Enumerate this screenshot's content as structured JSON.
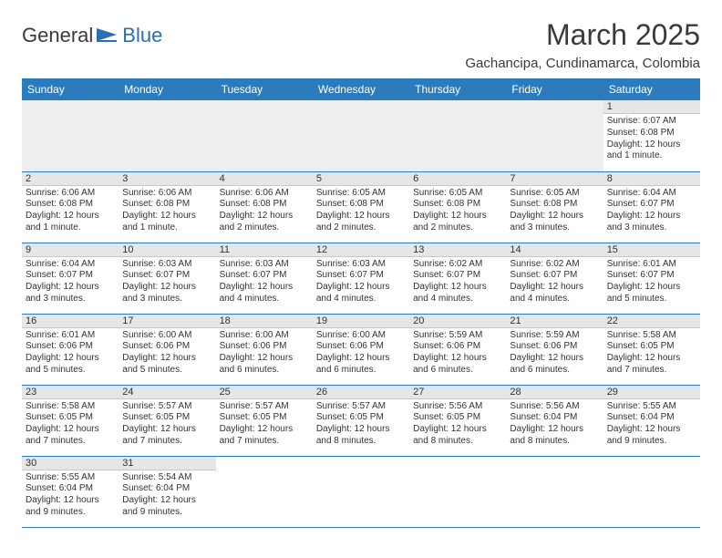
{
  "logo": {
    "part1": "General",
    "part2": "Blue"
  },
  "month_title": "March 2025",
  "subtitle": "Gachancipa, Cundinamarca, Colombia",
  "header_bg": "#2b7bbd",
  "header_text": "#ffffff",
  "daynum_bg": "#e6e6e6",
  "rule_color": "#2b7bbd",
  "weekdays": [
    "Sunday",
    "Monday",
    "Tuesday",
    "Wednesday",
    "Thursday",
    "Friday",
    "Saturday"
  ],
  "weeks": [
    [
      null,
      null,
      null,
      null,
      null,
      null,
      {
        "n": "1",
        "sr": "Sunrise: 6:07 AM",
        "ss": "Sunset: 6:08 PM",
        "d1": "Daylight: 12 hours",
        "d2": "and 1 minute."
      }
    ],
    [
      {
        "n": "2",
        "sr": "Sunrise: 6:06 AM",
        "ss": "Sunset: 6:08 PM",
        "d1": "Daylight: 12 hours",
        "d2": "and 1 minute."
      },
      {
        "n": "3",
        "sr": "Sunrise: 6:06 AM",
        "ss": "Sunset: 6:08 PM",
        "d1": "Daylight: 12 hours",
        "d2": "and 1 minute."
      },
      {
        "n": "4",
        "sr": "Sunrise: 6:06 AM",
        "ss": "Sunset: 6:08 PM",
        "d1": "Daylight: 12 hours",
        "d2": "and 2 minutes."
      },
      {
        "n": "5",
        "sr": "Sunrise: 6:05 AM",
        "ss": "Sunset: 6:08 PM",
        "d1": "Daylight: 12 hours",
        "d2": "and 2 minutes."
      },
      {
        "n": "6",
        "sr": "Sunrise: 6:05 AM",
        "ss": "Sunset: 6:08 PM",
        "d1": "Daylight: 12 hours",
        "d2": "and 2 minutes."
      },
      {
        "n": "7",
        "sr": "Sunrise: 6:05 AM",
        "ss": "Sunset: 6:08 PM",
        "d1": "Daylight: 12 hours",
        "d2": "and 3 minutes."
      },
      {
        "n": "8",
        "sr": "Sunrise: 6:04 AM",
        "ss": "Sunset: 6:07 PM",
        "d1": "Daylight: 12 hours",
        "d2": "and 3 minutes."
      }
    ],
    [
      {
        "n": "9",
        "sr": "Sunrise: 6:04 AM",
        "ss": "Sunset: 6:07 PM",
        "d1": "Daylight: 12 hours",
        "d2": "and 3 minutes."
      },
      {
        "n": "10",
        "sr": "Sunrise: 6:03 AM",
        "ss": "Sunset: 6:07 PM",
        "d1": "Daylight: 12 hours",
        "d2": "and 3 minutes."
      },
      {
        "n": "11",
        "sr": "Sunrise: 6:03 AM",
        "ss": "Sunset: 6:07 PM",
        "d1": "Daylight: 12 hours",
        "d2": "and 4 minutes."
      },
      {
        "n": "12",
        "sr": "Sunrise: 6:03 AM",
        "ss": "Sunset: 6:07 PM",
        "d1": "Daylight: 12 hours",
        "d2": "and 4 minutes."
      },
      {
        "n": "13",
        "sr": "Sunrise: 6:02 AM",
        "ss": "Sunset: 6:07 PM",
        "d1": "Daylight: 12 hours",
        "d2": "and 4 minutes."
      },
      {
        "n": "14",
        "sr": "Sunrise: 6:02 AM",
        "ss": "Sunset: 6:07 PM",
        "d1": "Daylight: 12 hours",
        "d2": "and 4 minutes."
      },
      {
        "n": "15",
        "sr": "Sunrise: 6:01 AM",
        "ss": "Sunset: 6:07 PM",
        "d1": "Daylight: 12 hours",
        "d2": "and 5 minutes."
      }
    ],
    [
      {
        "n": "16",
        "sr": "Sunrise: 6:01 AM",
        "ss": "Sunset: 6:06 PM",
        "d1": "Daylight: 12 hours",
        "d2": "and 5 minutes."
      },
      {
        "n": "17",
        "sr": "Sunrise: 6:00 AM",
        "ss": "Sunset: 6:06 PM",
        "d1": "Daylight: 12 hours",
        "d2": "and 5 minutes."
      },
      {
        "n": "18",
        "sr": "Sunrise: 6:00 AM",
        "ss": "Sunset: 6:06 PM",
        "d1": "Daylight: 12 hours",
        "d2": "and 6 minutes."
      },
      {
        "n": "19",
        "sr": "Sunrise: 6:00 AM",
        "ss": "Sunset: 6:06 PM",
        "d1": "Daylight: 12 hours",
        "d2": "and 6 minutes."
      },
      {
        "n": "20",
        "sr": "Sunrise: 5:59 AM",
        "ss": "Sunset: 6:06 PM",
        "d1": "Daylight: 12 hours",
        "d2": "and 6 minutes."
      },
      {
        "n": "21",
        "sr": "Sunrise: 5:59 AM",
        "ss": "Sunset: 6:06 PM",
        "d1": "Daylight: 12 hours",
        "d2": "and 6 minutes."
      },
      {
        "n": "22",
        "sr": "Sunrise: 5:58 AM",
        "ss": "Sunset: 6:05 PM",
        "d1": "Daylight: 12 hours",
        "d2": "and 7 minutes."
      }
    ],
    [
      {
        "n": "23",
        "sr": "Sunrise: 5:58 AM",
        "ss": "Sunset: 6:05 PM",
        "d1": "Daylight: 12 hours",
        "d2": "and 7 minutes."
      },
      {
        "n": "24",
        "sr": "Sunrise: 5:57 AM",
        "ss": "Sunset: 6:05 PM",
        "d1": "Daylight: 12 hours",
        "d2": "and 7 minutes."
      },
      {
        "n": "25",
        "sr": "Sunrise: 5:57 AM",
        "ss": "Sunset: 6:05 PM",
        "d1": "Daylight: 12 hours",
        "d2": "and 7 minutes."
      },
      {
        "n": "26",
        "sr": "Sunrise: 5:57 AM",
        "ss": "Sunset: 6:05 PM",
        "d1": "Daylight: 12 hours",
        "d2": "and 8 minutes."
      },
      {
        "n": "27",
        "sr": "Sunrise: 5:56 AM",
        "ss": "Sunset: 6:05 PM",
        "d1": "Daylight: 12 hours",
        "d2": "and 8 minutes."
      },
      {
        "n": "28",
        "sr": "Sunrise: 5:56 AM",
        "ss": "Sunset: 6:04 PM",
        "d1": "Daylight: 12 hours",
        "d2": "and 8 minutes."
      },
      {
        "n": "29",
        "sr": "Sunrise: 5:55 AM",
        "ss": "Sunset: 6:04 PM",
        "d1": "Daylight: 12 hours",
        "d2": "and 9 minutes."
      }
    ],
    [
      {
        "n": "30",
        "sr": "Sunrise: 5:55 AM",
        "ss": "Sunset: 6:04 PM",
        "d1": "Daylight: 12 hours",
        "d2": "and 9 minutes."
      },
      {
        "n": "31",
        "sr": "Sunrise: 5:54 AM",
        "ss": "Sunset: 6:04 PM",
        "d1": "Daylight: 12 hours",
        "d2": "and 9 minutes."
      },
      null,
      null,
      null,
      null,
      null
    ]
  ]
}
